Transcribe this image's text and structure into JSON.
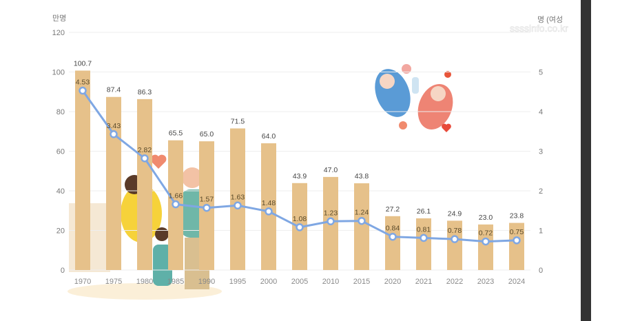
{
  "chart_data": {
    "type": "bar+line",
    "categories": [
      "1970",
      "1975",
      "1980",
      "1985",
      "1990",
      "1995",
      "2000",
      "2005",
      "2010",
      "2015",
      "2020",
      "2021",
      "2022",
      "2023",
      "2024"
    ],
    "series": [
      {
        "axis": "left",
        "type": "bar",
        "values": [
          100.7,
          87.4,
          86.3,
          65.5,
          65.0,
          71.5,
          64.0,
          43.9,
          47.0,
          43.8,
          27.2,
          26.1,
          24.9,
          23.0,
          23.8
        ],
        "labels": [
          "100.7",
          "87.4",
          "86.3",
          "65.5",
          "65.0",
          "71.5",
          "64.0",
          "43.9",
          "47.0",
          "43.8",
          "27.2",
          "26.1",
          "24.9",
          "23.0",
          "23.8"
        ]
      },
      {
        "axis": "right",
        "type": "line",
        "values": [
          4.53,
          3.43,
          2.82,
          1.66,
          1.57,
          1.63,
          1.48,
          1.08,
          1.23,
          1.24,
          0.84,
          0.81,
          0.78,
          0.72,
          0.75
        ],
        "labels": [
          "4.53",
          "3.43",
          "2.82",
          "1.66",
          "1.57",
          "1.63",
          "1.48",
          "1.08",
          "1.23",
          "1.24",
          "0.84",
          "0.81",
          "0.78",
          "0.72",
          "0.75"
        ]
      }
    ],
    "left_axis": {
      "unit": "만명",
      "ylim": [
        0,
        120
      ],
      "ticks": [
        "0",
        "20",
        "40",
        "60",
        "80",
        "100",
        "120"
      ]
    },
    "right_axis": {
      "unit": "명 (여성",
      "ylim": [
        0,
        6
      ],
      "ticks": [
        "0",
        "1",
        "2",
        "3",
        "4",
        "5"
      ]
    },
    "grid": true,
    "colors": {
      "bar": "#e6c18a",
      "line": "#7fa7e3",
      "sidebar": "#333333"
    }
  },
  "watermark": "ssssinfo.co.kr"
}
